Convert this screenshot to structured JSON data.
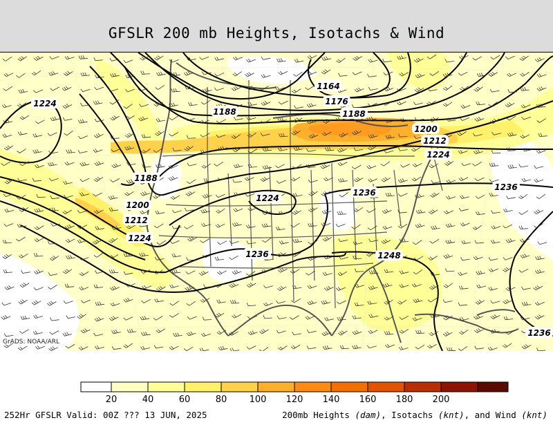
{
  "header": {
    "title": "GFSLR 200 mb Heights, Isotachs & Wind"
  },
  "map": {
    "credit": "GrADS: NOAA/ARL",
    "height_contours_dam": [
      "1164",
      "1176",
      "1188",
      "1200",
      "1212",
      "1224",
      "1236",
      "1248"
    ],
    "height_labels": [
      {
        "text": "1224",
        "id": "lbl-1224-nw"
      },
      {
        "text": "1164",
        "id": "lbl-1164"
      },
      {
        "text": "1176",
        "id": "lbl-1176"
      },
      {
        "text": "1188",
        "id": "lbl-1188-a"
      },
      {
        "text": "1188",
        "id": "lbl-1188-b"
      },
      {
        "text": "1200",
        "id": "lbl-1200-e"
      },
      {
        "text": "1212",
        "id": "lbl-1212-e"
      },
      {
        "text": "1224",
        "id": "lbl-1224-e"
      },
      {
        "text": "1188",
        "id": "lbl-1188-w"
      },
      {
        "text": "1224",
        "id": "lbl-1224-c"
      },
      {
        "text": "1236",
        "id": "lbl-1236-c"
      },
      {
        "text": "1236",
        "id": "lbl-1236-e"
      },
      {
        "text": "1200",
        "id": "lbl-1200-w"
      },
      {
        "text": "1212",
        "id": "lbl-1212-w"
      },
      {
        "text": "1224",
        "id": "lbl-1224-sw"
      },
      {
        "text": "1236",
        "id": "lbl-1236-s"
      },
      {
        "text": "1248",
        "id": "lbl-1248"
      },
      {
        "text": "1236",
        "id": "lbl-1236-se"
      }
    ],
    "isotach_colors": [
      "#ffffff",
      "#ffffc0",
      "#ffff9a",
      "#ffff70",
      "#ffd84a",
      "#ffb030",
      "#ff8c00",
      "#f07000",
      "#d85400",
      "#b83800",
      "#8c1c00",
      "#581000"
    ]
  },
  "colorbar": {
    "labels": [
      "20",
      "40",
      "60",
      "80",
      "100",
      "120",
      "140",
      "160",
      "180",
      "200"
    ],
    "colors": [
      "#ffffff",
      "#ffffc4",
      "#ffff98",
      "#fff26a",
      "#ffd24a",
      "#ffb02a",
      "#ff8c10",
      "#f46e00",
      "#e05400",
      "#b83000",
      "#8c1400",
      "#5a0a00"
    ]
  },
  "footer": {
    "valid": "252Hr GFSLR Valid: 00Z ??? 13 JUN, 2025",
    "legend_prefix": "200mb Heights ",
    "legend_units1": "(dam)",
    "legend_mid1": ", Isotachs ",
    "legend_units2": "(knt)",
    "legend_mid2": ", and Wind ",
    "legend_units3": "(knt)"
  }
}
